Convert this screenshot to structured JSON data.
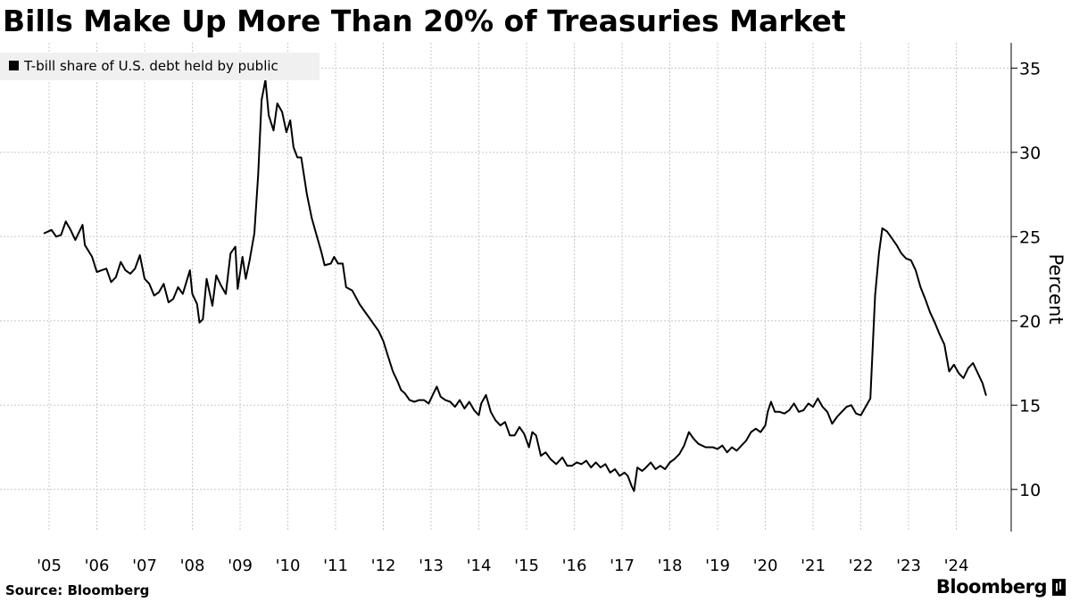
{
  "chart_data": {
    "type": "line",
    "title": "Bills Make Up More Than 20% of Treasuries Market",
    "ylabel": "Percent",
    "xlabel": "",
    "ylim": [
      7.5,
      36.5
    ],
    "yticks": [
      10,
      15,
      20,
      25,
      30,
      35
    ],
    "xlim": [
      2005.0,
      2024.8
    ],
    "xticks": [
      {
        "label": "'05",
        "x": 2005.0
      },
      {
        "label": "'06",
        "x": 2006.0
      },
      {
        "label": "'07",
        "x": 2007.0
      },
      {
        "label": "'08",
        "x": 2008.0
      },
      {
        "label": "'09",
        "x": 2009.0
      },
      {
        "label": "'10",
        "x": 2010.0
      },
      {
        "label": "'11",
        "x": 2011.0
      },
      {
        "label": "'12",
        "x": 2012.0
      },
      {
        "label": "'13",
        "x": 2013.0
      },
      {
        "label": "'14",
        "x": 2014.0
      },
      {
        "label": "'15",
        "x": 2015.0
      },
      {
        "label": "'16",
        "x": 2016.0
      },
      {
        "label": "'17",
        "x": 2017.0
      },
      {
        "label": "'18",
        "x": 2018.0
      },
      {
        "label": "'19",
        "x": 2019.0
      },
      {
        "label": "'20",
        "x": 2020.0
      },
      {
        "label": "'21",
        "x": 2021.0
      },
      {
        "label": "'22",
        "x": 2022.0
      },
      {
        "label": "'23",
        "x": 2023.0
      },
      {
        "label": "'24",
        "x": 2024.0
      }
    ],
    "grid": true,
    "legend": "top-left",
    "series": [
      {
        "name": "T-bill share of U.S. debt held by public",
        "color": "#000000",
        "points": [
          [
            2004.9,
            25.2
          ],
          [
            2005.05,
            25.4
          ],
          [
            2005.15,
            25.0
          ],
          [
            2005.25,
            25.1
          ],
          [
            2005.35,
            25.9
          ],
          [
            2005.45,
            25.4
          ],
          [
            2005.55,
            24.8
          ],
          [
            2005.7,
            25.7
          ],
          [
            2005.75,
            24.5
          ],
          [
            2005.9,
            23.8
          ],
          [
            2006.0,
            22.9
          ],
          [
            2006.1,
            23.0
          ],
          [
            2006.2,
            23.1
          ],
          [
            2006.3,
            22.3
          ],
          [
            2006.4,
            22.6
          ],
          [
            2006.5,
            23.5
          ],
          [
            2006.6,
            23.0
          ],
          [
            2006.7,
            22.8
          ],
          [
            2006.8,
            23.1
          ],
          [
            2006.9,
            23.9
          ],
          [
            2007.0,
            22.5
          ],
          [
            2007.1,
            22.2
          ],
          [
            2007.2,
            21.5
          ],
          [
            2007.3,
            21.7
          ],
          [
            2007.4,
            22.2
          ],
          [
            2007.5,
            21.1
          ],
          [
            2007.6,
            21.3
          ],
          [
            2007.7,
            22.0
          ],
          [
            2007.8,
            21.6
          ],
          [
            2007.95,
            23.0
          ],
          [
            2008.0,
            21.6
          ],
          [
            2008.1,
            21.0
          ],
          [
            2008.15,
            19.9
          ],
          [
            2008.22,
            20.1
          ],
          [
            2008.3,
            22.5
          ],
          [
            2008.42,
            20.9
          ],
          [
            2008.5,
            22.7
          ],
          [
            2008.6,
            22.1
          ],
          [
            2008.7,
            21.6
          ],
          [
            2008.8,
            24.0
          ],
          [
            2008.9,
            24.4
          ],
          [
            2008.95,
            21.9
          ],
          [
            2009.05,
            23.8
          ],
          [
            2009.12,
            22.5
          ],
          [
            2009.2,
            23.6
          ],
          [
            2009.3,
            25.2
          ],
          [
            2009.38,
            28.7
          ],
          [
            2009.45,
            33.1
          ],
          [
            2009.53,
            34.3
          ],
          [
            2009.6,
            32.2
          ],
          [
            2009.7,
            31.3
          ],
          [
            2009.78,
            32.9
          ],
          [
            2009.88,
            32.4
          ],
          [
            2009.97,
            31.2
          ],
          [
            2010.05,
            31.9
          ],
          [
            2010.12,
            30.3
          ],
          [
            2010.2,
            29.7
          ],
          [
            2010.28,
            29.7
          ],
          [
            2010.4,
            27.5
          ],
          [
            2010.5,
            26.1
          ],
          [
            2010.6,
            25.1
          ],
          [
            2010.7,
            24.1
          ],
          [
            2010.77,
            23.3
          ],
          [
            2010.9,
            23.4
          ],
          [
            2010.97,
            23.8
          ],
          [
            2011.05,
            23.4
          ],
          [
            2011.15,
            23.4
          ],
          [
            2011.22,
            22.0
          ],
          [
            2011.35,
            21.8
          ],
          [
            2011.5,
            21.0
          ],
          [
            2011.6,
            20.6
          ],
          [
            2011.7,
            20.2
          ],
          [
            2011.8,
            19.8
          ],
          [
            2011.9,
            19.4
          ],
          [
            2012.0,
            18.8
          ],
          [
            2012.1,
            17.9
          ],
          [
            2012.2,
            17.0
          ],
          [
            2012.3,
            16.4
          ],
          [
            2012.37,
            15.9
          ],
          [
            2012.45,
            15.7
          ],
          [
            2012.55,
            15.3
          ],
          [
            2012.65,
            15.2
          ],
          [
            2012.75,
            15.3
          ],
          [
            2012.85,
            15.3
          ],
          [
            2012.95,
            15.1
          ],
          [
            2013.05,
            15.7
          ],
          [
            2013.12,
            16.1
          ],
          [
            2013.2,
            15.5
          ],
          [
            2013.3,
            15.3
          ],
          [
            2013.4,
            15.2
          ],
          [
            2013.5,
            14.9
          ],
          [
            2013.6,
            15.3
          ],
          [
            2013.7,
            14.8
          ],
          [
            2013.8,
            15.2
          ],
          [
            2013.9,
            14.7
          ],
          [
            2014.0,
            14.4
          ],
          [
            2014.05,
            15.1
          ],
          [
            2014.15,
            15.6
          ],
          [
            2014.25,
            14.6
          ],
          [
            2014.35,
            14.1
          ],
          [
            2014.45,
            13.8
          ],
          [
            2014.55,
            14.0
          ],
          [
            2014.65,
            13.2
          ],
          [
            2014.75,
            13.2
          ],
          [
            2014.85,
            13.7
          ],
          [
            2014.95,
            13.3
          ],
          [
            2015.05,
            12.5
          ],
          [
            2015.12,
            13.4
          ],
          [
            2015.2,
            13.2
          ],
          [
            2015.3,
            12.0
          ],
          [
            2015.4,
            12.2
          ],
          [
            2015.5,
            11.8
          ],
          [
            2015.62,
            11.5
          ],
          [
            2015.75,
            11.9
          ],
          [
            2015.85,
            11.4
          ],
          [
            2015.95,
            11.4
          ],
          [
            2016.05,
            11.6
          ],
          [
            2016.15,
            11.5
          ],
          [
            2016.25,
            11.7
          ],
          [
            2016.35,
            11.3
          ],
          [
            2016.45,
            11.6
          ],
          [
            2016.55,
            11.3
          ],
          [
            2016.65,
            11.5
          ],
          [
            2016.75,
            11.0
          ],
          [
            2016.85,
            11.2
          ],
          [
            2016.95,
            10.8
          ],
          [
            2017.05,
            11.0
          ],
          [
            2017.12,
            10.8
          ],
          [
            2017.2,
            10.2
          ],
          [
            2017.25,
            9.9
          ],
          [
            2017.32,
            11.3
          ],
          [
            2017.42,
            11.1
          ],
          [
            2017.5,
            11.3
          ],
          [
            2017.6,
            11.6
          ],
          [
            2017.7,
            11.2
          ],
          [
            2017.8,
            11.4
          ],
          [
            2017.9,
            11.2
          ],
          [
            2018.0,
            11.6
          ],
          [
            2018.1,
            11.8
          ],
          [
            2018.2,
            12.1
          ],
          [
            2018.3,
            12.6
          ],
          [
            2018.4,
            13.4
          ],
          [
            2018.5,
            13.0
          ],
          [
            2018.6,
            12.7
          ],
          [
            2018.75,
            12.5
          ],
          [
            2018.9,
            12.5
          ],
          [
            2019.0,
            12.4
          ],
          [
            2019.1,
            12.6
          ],
          [
            2019.2,
            12.2
          ],
          [
            2019.3,
            12.5
          ],
          [
            2019.4,
            12.3
          ],
          [
            2019.5,
            12.6
          ],
          [
            2019.6,
            12.9
          ],
          [
            2019.7,
            13.4
          ],
          [
            2019.8,
            13.6
          ],
          [
            2019.9,
            13.4
          ],
          [
            2020.0,
            13.8
          ],
          [
            2020.05,
            14.6
          ],
          [
            2020.12,
            15.2
          ],
          [
            2020.2,
            14.6
          ],
          [
            2020.3,
            14.6
          ],
          [
            2020.4,
            14.5
          ],
          [
            2020.5,
            14.7
          ],
          [
            2020.6,
            15.1
          ],
          [
            2020.7,
            14.6
          ],
          [
            2020.8,
            14.7
          ],
          [
            2020.9,
            15.1
          ],
          [
            2021.0,
            14.9
          ],
          [
            2021.1,
            15.4
          ],
          [
            2021.2,
            14.9
          ],
          [
            2021.3,
            14.6
          ],
          [
            2021.4,
            13.9
          ],
          [
            2021.5,
            14.3
          ],
          [
            2021.6,
            14.6
          ],
          [
            2021.7,
            14.9
          ],
          [
            2021.8,
            15.0
          ],
          [
            2021.9,
            14.5
          ],
          [
            2022.0,
            14.4
          ],
          [
            2022.1,
            14.9
          ],
          [
            2022.2,
            15.4
          ],
          [
            2022.3,
            21.5
          ],
          [
            2022.38,
            24.0
          ],
          [
            2022.45,
            25.5
          ],
          [
            2022.55,
            25.3
          ],
          [
            2022.65,
            24.9
          ],
          [
            2022.75,
            24.5
          ],
          [
            2022.85,
            24.0
          ],
          [
            2022.95,
            23.7
          ],
          [
            2023.05,
            23.6
          ],
          [
            2023.15,
            23.0
          ],
          [
            2023.25,
            22.0
          ],
          [
            2023.35,
            21.3
          ],
          [
            2023.45,
            20.5
          ],
          [
            2023.55,
            19.9
          ],
          [
            2023.65,
            19.2
          ],
          [
            2023.75,
            18.6
          ],
          [
            2023.85,
            17.0
          ],
          [
            2023.95,
            17.4
          ],
          [
            2024.05,
            16.9
          ],
          [
            2024.15,
            16.6
          ],
          [
            2024.25,
            17.2
          ],
          [
            2024.35,
            17.5
          ],
          [
            2024.45,
            16.9
          ],
          [
            2024.55,
            16.3
          ],
          [
            2024.62,
            15.6
          ]
        ]
      }
    ],
    "source": "Source: Bloomberg",
    "brand": "Bloomberg"
  }
}
